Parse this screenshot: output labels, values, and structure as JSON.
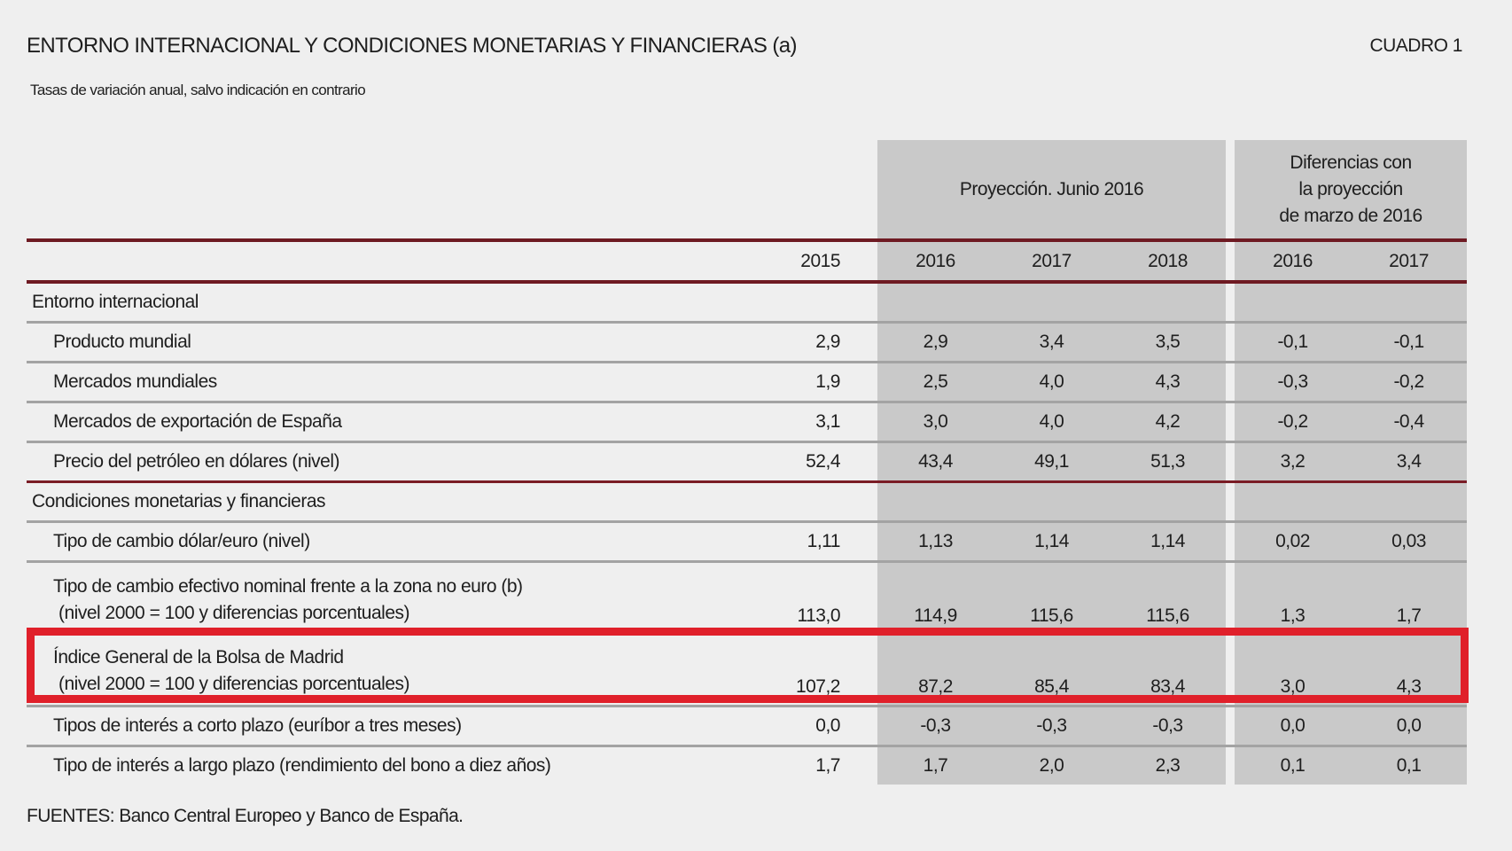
{
  "header": {
    "title": "ENTORNO INTERNACIONAL Y CONDICIONES MONETARIAS Y FINANCIERAS (a)",
    "box_label": "CUADRO 1",
    "subtitle": "Tasas de variación anual, salvo indicación en contrario"
  },
  "table": {
    "group_projection": "Proyección. Junio 2016",
    "group_diff": "Diferencias con la proyección de marzo de 2016",
    "group_diff_lines": [
      "Diferencias con",
      "la proyección",
      "de marzo de 2016"
    ],
    "years": [
      "2015",
      "2016",
      "2017",
      "2018",
      "2016",
      "2017"
    ],
    "sections": [
      {
        "title": "Entorno internacional",
        "rows": [
          {
            "label": [
              "Producto mundial"
            ],
            "values": [
              "2,9",
              "2,9",
              "3,4",
              "3,5",
              "-0,1",
              "-0,1"
            ]
          },
          {
            "label": [
              "Mercados mundiales"
            ],
            "values": [
              "1,9",
              "2,5",
              "4,0",
              "4,3",
              "-0,3",
              "-0,2"
            ]
          },
          {
            "label": [
              "Mercados de exportación de España"
            ],
            "values": [
              "3,1",
              "3,0",
              "4,0",
              "4,2",
              "-0,2",
              "-0,4"
            ]
          },
          {
            "label": [
              "Precio del petróleo en dólares (nivel)"
            ],
            "values": [
              "52,4",
              "43,4",
              "49,1",
              "51,3",
              "3,2",
              "3,4"
            ]
          }
        ]
      },
      {
        "title": "Condiciones monetarias y financieras",
        "rows": [
          {
            "label": [
              "Tipo de cambio dólar/euro  (nivel)"
            ],
            "values": [
              "1,11",
              "1,13",
              "1,14",
              "1,14",
              "0,02",
              "0,03"
            ]
          },
          {
            "label": [
              "Tipo de cambio efectivo nominal frente a la zona no euro (b)",
              "(nivel 2000 = 100 y diferencias porcentuales)"
            ],
            "values": [
              "113,0",
              "114,9",
              "115,6",
              "115,6",
              "1,3",
              "1,7"
            ]
          },
          {
            "label": [
              "Índice General de la Bolsa de Madrid",
              "(nivel 2000 = 100 y diferencias porcentuales)"
            ],
            "values": [
              "107,2",
              "87,2",
              "85,4",
              "83,4",
              "3,0",
              "4,3"
            ],
            "highlighted": true
          },
          {
            "label": [
              "Tipos de interés a corto plazo (euríbor a tres meses)"
            ],
            "values": [
              "0,0",
              "-0,3",
              "-0,3",
              "-0,3",
              "0,0",
              "0,0"
            ]
          },
          {
            "label": [
              "Tipo de interés a largo plazo  (rendimiento del bono a diez años)"
            ],
            "values": [
              "1,7",
              "1,7",
              "2,0",
              "2,3",
              "0,1",
              "0,1"
            ]
          }
        ]
      }
    ]
  },
  "footer": "FUENTES: Banco Central Europeo y Banco de España.",
  "colors": {
    "background": "#efefef",
    "shaded_columns": "#c9c9c9",
    "rule": "#6e1a22",
    "highlight_box": "#e0202a"
  }
}
